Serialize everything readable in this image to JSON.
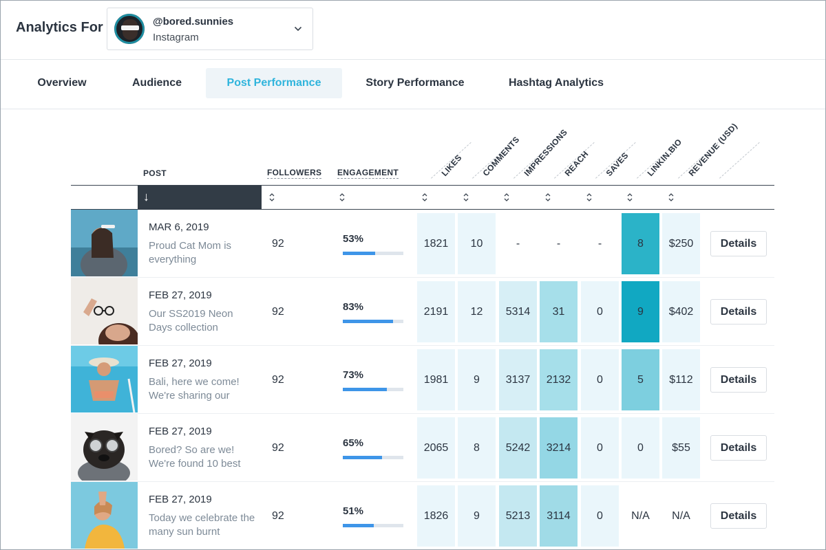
{
  "header": {
    "title": "Analytics For",
    "account": {
      "handle": "@bored.sunnies",
      "platform": "Instagram"
    }
  },
  "tabs": [
    {
      "label": "Overview"
    },
    {
      "label": "Audience"
    },
    {
      "label": "Post Performance",
      "active": true
    },
    {
      "label": "Story Performance"
    },
    {
      "label": "Hashtag Analytics"
    }
  ],
  "table": {
    "columns": {
      "post": "POST",
      "followers": "FOLLOWERS",
      "engagement": "ENGAGEMENT",
      "likes": "LIKES",
      "comments": "COMMENTS",
      "impressions": "IMPRESSIONS",
      "reach": "REACH",
      "saves": "SAVES",
      "linkinbio": "LINKIN.BIO",
      "revenue": "REVENUE (USD)"
    },
    "sort_arrow": "↓",
    "details_label": "Details",
    "rows": [
      {
        "date": "MAR 6, 2019",
        "caption": "Proud Cat Mom is everything",
        "followers": "92",
        "engagement": "53%",
        "engagement_value": 53,
        "likes": "1821",
        "comments": "10",
        "impressions": "-",
        "reach": "-",
        "saves": "-",
        "linkinbio": "8",
        "revenue": "$250"
      },
      {
        "date": "FEB 27, 2019",
        "caption": "Our SS2019 Neon Days collection",
        "followers": "92",
        "engagement": "83%",
        "engagement_value": 83,
        "likes": "2191",
        "comments": "12",
        "impressions": "5314",
        "reach": "31",
        "saves": "0",
        "linkinbio": "9",
        "revenue": "$402"
      },
      {
        "date": "FEB 27, 2019",
        "caption": "Bali, here we come! We're sharing our",
        "followers": "92",
        "engagement": "73%",
        "engagement_value": 73,
        "likes": "1981",
        "comments": "9",
        "impressions": "3137",
        "reach": "2132",
        "saves": "0",
        "linkinbio": "5",
        "revenue": "$112"
      },
      {
        "date": "FEB 27, 2019",
        "caption": "Bored? So are we! We're found 10 best",
        "followers": "92",
        "engagement": "65%",
        "engagement_value": 65,
        "likes": "2065",
        "comments": "8",
        "impressions": "5242",
        "reach": "3214",
        "saves": "0",
        "linkinbio": "0",
        "revenue": "$55"
      },
      {
        "date": "FEB 27, 2019",
        "caption": "Today we celebrate the many sun burnt",
        "followers": "92",
        "engagement": "51%",
        "engagement_value": 51,
        "likes": "1826",
        "comments": "9",
        "impressions": "5213",
        "reach": "3114",
        "saves": "0",
        "linkinbio": "N/A",
        "revenue": "N/A"
      }
    ]
  },
  "colors": {
    "accent": "#2fb4dc",
    "bar": "#3e95e8",
    "dark": "#323c46",
    "heat_light": "#eaf6fb",
    "heat_mid": "#d7eff6",
    "heat_strong": "#a6dfea",
    "heat_max": "#11a8c2"
  }
}
